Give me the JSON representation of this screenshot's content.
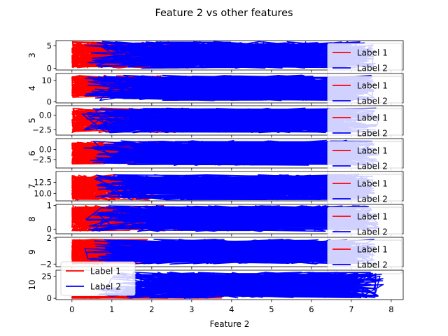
{
  "figure": {
    "title": "Feature 2 vs other features",
    "xlabel": "Feature 2"
  },
  "colors": {
    "label1": "#ff0000",
    "label2": "#0000ff"
  },
  "chart_data": {
    "type": "line",
    "title": "Feature 2 vs other features",
    "xlabel": "Feature 2",
    "xlim": [
      -0.4,
      8.3
    ],
    "xticks": [
      0,
      1,
      2,
      3,
      4,
      5,
      6,
      7,
      8
    ],
    "grid": false,
    "panels": [
      {
        "ylabel": "3",
        "ylim": [
          -0.4,
          6.2
        ],
        "yticks": [
          0,
          5
        ],
        "ytick_labels": [
          "0",
          "5"
        ],
        "legend": [
          "Label 1",
          "Label 2"
        ],
        "legend_placement": "right",
        "series": [
          {
            "name": "Label 1",
            "color": "#ff0000",
            "xrange": [
              0.0,
              3.2
            ],
            "yrange": [
              0.0,
              6.0
            ]
          },
          {
            "name": "Label 2",
            "color": "#0000ff",
            "xrange": [
              0.3,
              7.6
            ],
            "yrange": [
              0.0,
              6.0
            ]
          }
        ]
      },
      {
        "ylabel": "4",
        "ylim": [
          -0.5,
          13.3
        ],
        "yticks": [
          0,
          10
        ],
        "ytick_labels": [
          "0",
          "10"
        ],
        "legend": [
          "Label 1",
          "Label 2"
        ],
        "legend_placement": "right",
        "series": [
          {
            "name": "Label 1",
            "color": "#ff0000",
            "xrange": [
              0.0,
              3.0
            ],
            "yrange": [
              2.0,
              12.5
            ]
          },
          {
            "name": "Label 2",
            "color": "#0000ff",
            "xrange": [
              0.3,
              7.6
            ],
            "yrange": [
              0.5,
              12.5
            ]
          }
        ]
      },
      {
        "ylabel": "5",
        "ylim": [
          -3.4,
          1.6
        ],
        "yticks": [
          -2.5,
          0
        ],
        "ytick_labels": [
          "−2.5",
          "0.0"
        ],
        "legend": [
          "Label 1",
          "Label 2"
        ],
        "legend_placement": "right",
        "series": [
          {
            "name": "Label 1",
            "color": "#ff0000",
            "xrange": [
              0.0,
              2.8
            ],
            "yrange": [
              -3.0,
              1.2
            ]
          },
          {
            "name": "Label 2",
            "color": "#0000ff",
            "xrange": [
              0.2,
              7.7
            ],
            "yrange": [
              -3.0,
              1.2
            ]
          }
        ]
      },
      {
        "ylabel": "6",
        "ylim": [
          -4.6,
          2.7
        ],
        "yticks": [
          -2.5,
          0
        ],
        "ytick_labels": [
          "−2.5",
          "0.0"
        ],
        "legend": [
          "Label 1",
          "Label 2"
        ],
        "legend_placement": "right",
        "series": [
          {
            "name": "Label 1",
            "color": "#ff0000",
            "xrange": [
              0.0,
              3.3
            ],
            "yrange": [
              -3.6,
              2.0
            ]
          },
          {
            "name": "Label 2",
            "color": "#0000ff",
            "xrange": [
              0.3,
              7.7
            ],
            "yrange": [
              -4.0,
              2.3
            ]
          }
        ]
      },
      {
        "ylabel": "7",
        "ylim": [
          8.3,
          15.0
        ],
        "yticks": [
          10.0,
          12.5
        ],
        "ytick_labels": [
          "10.0",
          "12.5"
        ],
        "legend": [
          "Label 1",
          "Label 2"
        ],
        "legend_placement": "right",
        "series": [
          {
            "name": "Label 1",
            "color": "#ff0000",
            "xrange": [
              0.0,
              2.2
            ],
            "yrange": [
              8.5,
              14.3
            ]
          },
          {
            "name": "Label 2",
            "color": "#0000ff",
            "xrange": [
              0.4,
              7.6
            ],
            "yrange": [
              8.5,
              14.3
            ]
          }
        ]
      },
      {
        "ylabel": "8",
        "ylim": [
          -0.2,
          1.05
        ],
        "yticks": [
          0,
          1
        ],
        "ytick_labels": [
          "0",
          "1"
        ],
        "legend": [
          "Label 1",
          "Label 2"
        ],
        "legend_placement": "right",
        "series": [
          {
            "name": "Label 1",
            "color": "#ff0000",
            "xrange": [
              0.0,
              2.8
            ],
            "yrange": [
              -0.1,
              1.0
            ]
          },
          {
            "name": "Label 2",
            "color": "#0000ff",
            "xrange": [
              0.3,
              7.7
            ],
            "yrange": [
              -0.1,
              1.0
            ]
          }
        ]
      },
      {
        "ylabel": "9",
        "ylim": [
          -2.4,
          2.1
        ],
        "yticks": [
          -2,
          2
        ],
        "ytick_labels": [
          "−2",
          "2"
        ],
        "legend": [
          "Label 1",
          "Label 2"
        ],
        "legend_placement": "right",
        "series": [
          {
            "name": "Label 1",
            "color": "#ff0000",
            "xrange": [
              0.0,
              2.0
            ],
            "yrange": [
              -2.0,
              1.8
            ]
          },
          {
            "name": "Label 2",
            "color": "#0000ff",
            "xrange": [
              0.3,
              7.6
            ],
            "yrange": [
              -2.0,
              1.8
            ]
          }
        ]
      },
      {
        "ylabel": "10",
        "ylim": [
          -1.5,
          32.0
        ],
        "yticks": [
          0,
          25
        ],
        "ytick_labels": [
          "0",
          "25"
        ],
        "legend": [
          "Label 1",
          "Label 2"
        ],
        "legend_placement": "left",
        "series": [
          {
            "name": "Label 1",
            "color": "#ff0000",
            "xrange": [
              0.0,
              3.8
            ],
            "yrange": [
              0.0,
              2.0
            ]
          },
          {
            "name": "Label 2",
            "color": "#0000ff",
            "xrange": [
              0.5,
              7.8
            ],
            "yrange": [
              0.0,
              30.0
            ]
          }
        ]
      }
    ]
  }
}
